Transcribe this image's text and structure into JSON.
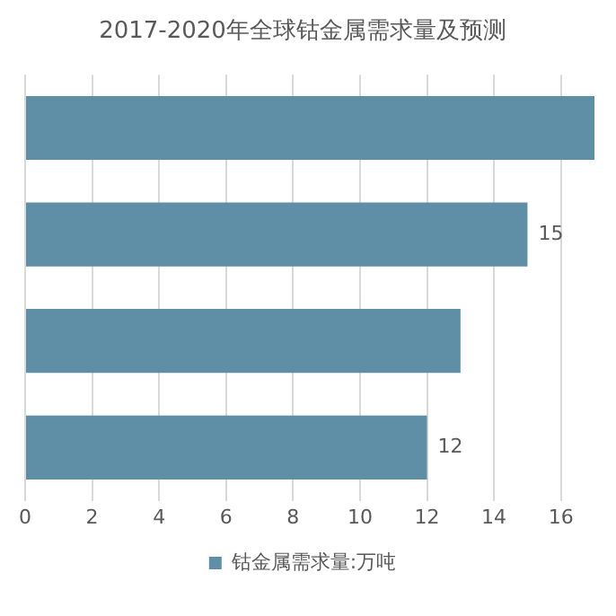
{
  "chart_data": {
    "type": "bar",
    "orientation": "horizontal",
    "title": "2017-2020年全球钴金属需求量及预测",
    "categories": [
      null,
      null,
      null,
      null
    ],
    "series": [
      {
        "name": "钴金属需求量:万吨",
        "color": "#5f8fa6",
        "values": [
          17,
          15,
          13,
          12
        ],
        "value_labels": [
          null,
          "15",
          null,
          "12"
        ]
      }
    ],
    "xlim": [
      0,
      17
    ],
    "xticks": [
      0,
      2,
      4,
      6,
      8,
      10,
      12,
      14,
      16
    ],
    "grid": "x",
    "legend": "bottom",
    "tick_labels": "x"
  }
}
